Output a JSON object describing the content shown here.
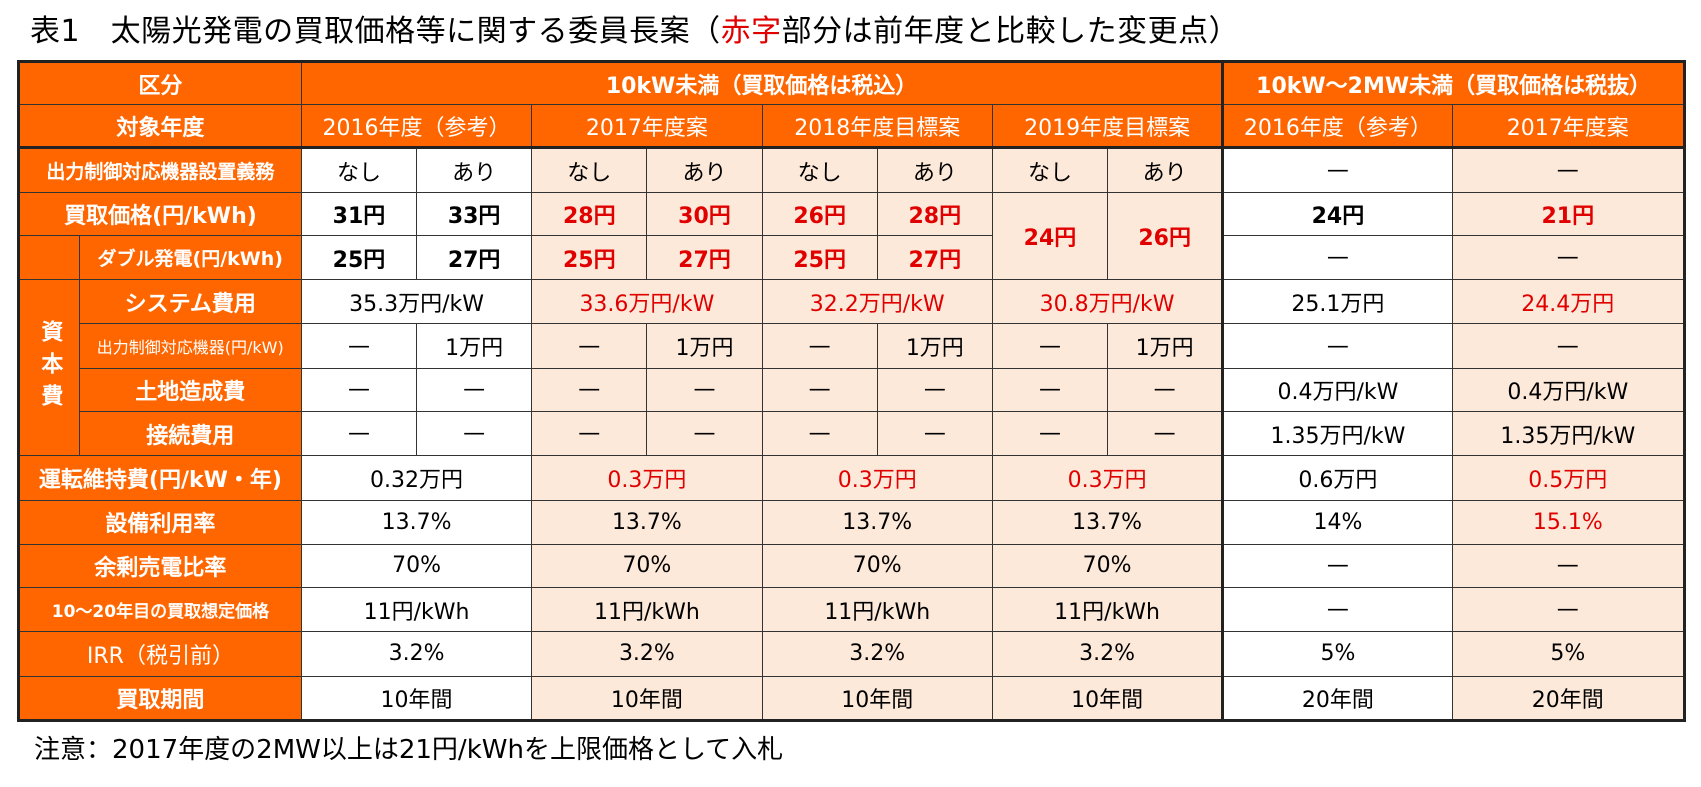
{
  "title": {
    "prefix": "表1　太陽光発電の買取価格等に関する委員長案（",
    "red": "赤字",
    "suffix": "部分は前年度と比較した変更点）"
  },
  "note": "注意：2017年度の2MW以上は21円/kWhを上限価格として入札",
  "colors": {
    "header_bg": "#ff6600",
    "highlight_bg": "#fde9d9",
    "change_text": "#e00000"
  },
  "header": {
    "kubun": "区分",
    "group_small": "10kW未満（買取価格は税込）",
    "group_large": "10kW～2MW未満（買取価格は税抜）",
    "taisho_nendo": "対象年度",
    "years": [
      "2016年度（参考）",
      "2017年度案",
      "2018年度目標案",
      "2019年度目標案",
      "2016年度（参考）",
      "2017年度案"
    ]
  },
  "rows": {
    "shutsuryoku": {
      "label": "出力制御対応機器設置義務",
      "values": [
        "なし",
        "あり",
        "なし",
        "あり",
        "なし",
        "あり",
        "なし",
        "あり",
        "—",
        "—"
      ]
    },
    "kaitori": {
      "label": "買取価格(円/kWh)",
      "values": [
        "31円",
        "33円",
        "28円",
        "30円",
        "26円",
        "28円",
        "24円",
        "26円",
        "24円",
        "21円"
      ]
    },
    "double": {
      "label": "ダブル発電(円/kWh)",
      "values": [
        "25円",
        "27円",
        "25円",
        "27円",
        "25円",
        "27円",
        "—",
        "—"
      ]
    },
    "shihonhi": {
      "label": "資本費"
    },
    "system": {
      "label": "システム費用",
      "values": [
        "35.3万円/kW",
        "33.6万円/kW",
        "32.2万円/kW",
        "30.8万円/kW",
        "25.1万円",
        "24.4万円"
      ]
    },
    "kiki": {
      "label": "出力制御対応機器(円/kW)",
      "values": [
        "—",
        "1万円",
        "—",
        "1万円",
        "—",
        "1万円",
        "—",
        "1万円",
        "—",
        "—"
      ]
    },
    "tochi": {
      "label": "土地造成費",
      "values": [
        "—",
        "—",
        "—",
        "—",
        "—",
        "—",
        "—",
        "—",
        "0.4万円/kW",
        "0.4万円/kW"
      ]
    },
    "setsuzoku": {
      "label": "接続費用",
      "values": [
        "—",
        "—",
        "—",
        "—",
        "—",
        "—",
        "—",
        "—",
        "1.35万円/kW",
        "1.35万円/kW"
      ]
    },
    "unten": {
      "label": "運転維持費(円/kW・年)",
      "values": [
        "0.32万円",
        "0.3万円",
        "0.3万円",
        "0.3万円",
        "0.6万円",
        "0.5万円"
      ]
    },
    "setsubi": {
      "label": "設備利用率",
      "values": [
        "13.7%",
        "13.7%",
        "13.7%",
        "13.7%",
        "14%",
        "15.1%"
      ]
    },
    "yojo": {
      "label": "余剰売電比率",
      "values": [
        "70%",
        "70%",
        "70%",
        "70%",
        "—",
        "—"
      ]
    },
    "soutei": {
      "label": "10～20年目の買取想定価格",
      "values": [
        "11円/kWh",
        "11円/kWh",
        "11円/kWh",
        "11円/kWh",
        "—",
        "—"
      ]
    },
    "irr": {
      "label": "IRR（税引前）",
      "values": [
        "3.2%",
        "3.2%",
        "3.2%",
        "3.2%",
        "5%",
        "5%"
      ]
    },
    "kikan": {
      "label": "買取期間",
      "values": [
        "10年間",
        "10年間",
        "10年間",
        "10年間",
        "20年間",
        "20年間"
      ]
    }
  }
}
